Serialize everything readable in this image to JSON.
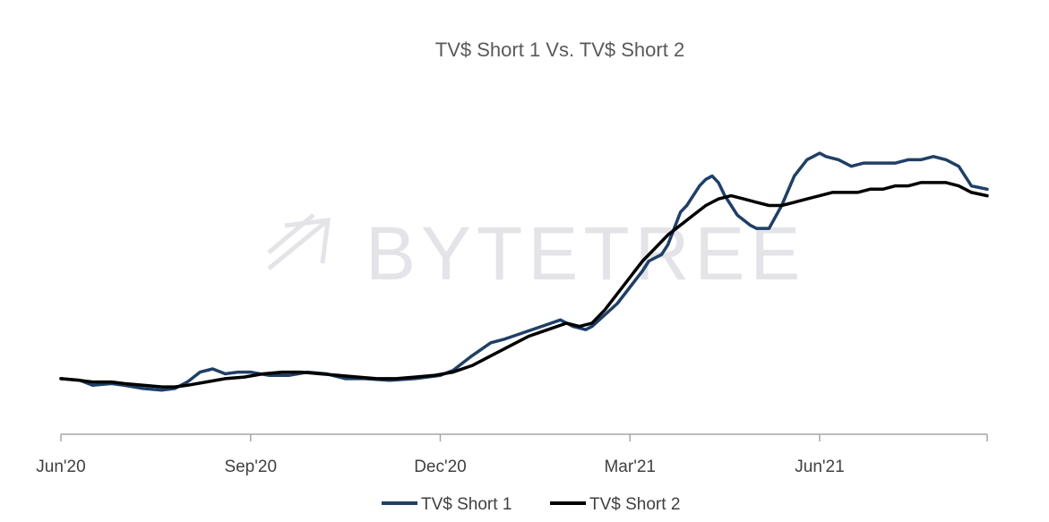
{
  "watermark": {
    "text": "BYTETREE"
  },
  "chart_data": {
    "type": "line",
    "title": "TV$ Short 1 Vs. TV$ Short 2",
    "xlabel": "",
    "ylabel": "",
    "x_ticks": [
      "Jun'20",
      "Sep'20",
      "Dec'20",
      "Mar'21",
      "Jun'21"
    ],
    "x_range": [
      0,
      14.65
    ],
    "ylim": [
      0,
      100
    ],
    "grid": false,
    "legend_position": "bottom",
    "series": [
      {
        "name": "TV$ Short 1",
        "color": "#1f3f66",
        "points": [
          [
            0,
            17
          ],
          [
            0.3,
            16.5
          ],
          [
            0.5,
            15
          ],
          [
            0.8,
            15.5
          ],
          [
            1.0,
            15
          ],
          [
            1.3,
            14
          ],
          [
            1.6,
            13.5
          ],
          [
            1.8,
            14
          ],
          [
            2.0,
            16
          ],
          [
            2.2,
            19
          ],
          [
            2.4,
            20
          ],
          [
            2.6,
            18.5
          ],
          [
            2.8,
            19
          ],
          [
            3.0,
            19
          ],
          [
            3.3,
            18
          ],
          [
            3.6,
            18
          ],
          [
            3.9,
            19
          ],
          [
            4.2,
            18.5
          ],
          [
            4.5,
            17
          ],
          [
            4.8,
            17
          ],
          [
            5.2,
            16.5
          ],
          [
            5.6,
            17
          ],
          [
            6.0,
            18
          ],
          [
            6.2,
            19.5
          ],
          [
            6.5,
            24
          ],
          [
            6.8,
            28
          ],
          [
            7.0,
            29
          ],
          [
            7.3,
            31
          ],
          [
            7.6,
            33
          ],
          [
            7.9,
            35
          ],
          [
            8.1,
            33
          ],
          [
            8.3,
            32
          ],
          [
            8.4,
            33
          ],
          [
            8.8,
            40
          ],
          [
            9.2,
            50
          ],
          [
            9.3,
            53
          ],
          [
            9.5,
            55
          ],
          [
            9.6,
            58
          ],
          [
            9.7,
            63
          ],
          [
            9.8,
            68
          ],
          [
            9.9,
            70
          ],
          [
            10.0,
            73
          ],
          [
            10.1,
            76
          ],
          [
            10.2,
            78
          ],
          [
            10.3,
            79
          ],
          [
            10.4,
            77
          ],
          [
            10.5,
            73
          ],
          [
            10.6,
            70
          ],
          [
            10.7,
            67
          ],
          [
            10.9,
            64
          ],
          [
            11.0,
            63
          ],
          [
            11.2,
            63
          ],
          [
            11.4,
            70
          ],
          [
            11.6,
            79
          ],
          [
            11.8,
            84
          ],
          [
            12.0,
            86
          ],
          [
            12.1,
            85
          ],
          [
            12.3,
            84
          ],
          [
            12.5,
            82
          ],
          [
            12.7,
            83
          ],
          [
            13.0,
            83
          ],
          [
            13.2,
            83
          ],
          [
            13.4,
            84
          ],
          [
            13.6,
            84
          ],
          [
            13.8,
            85
          ],
          [
            14.0,
            84
          ],
          [
            14.2,
            82
          ],
          [
            14.4,
            76
          ],
          [
            14.65,
            75
          ]
        ]
      },
      {
        "name": "TV$ Short 2",
        "color": "#000000",
        "points": [
          [
            0,
            17
          ],
          [
            0.3,
            16.5
          ],
          [
            0.5,
            16
          ],
          [
            0.8,
            16
          ],
          [
            1.0,
            15.5
          ],
          [
            1.3,
            15
          ],
          [
            1.6,
            14.5
          ],
          [
            1.8,
            14.5
          ],
          [
            2.0,
            15
          ],
          [
            2.3,
            16
          ],
          [
            2.6,
            17
          ],
          [
            2.9,
            17.5
          ],
          [
            3.2,
            18.5
          ],
          [
            3.5,
            19
          ],
          [
            3.8,
            19
          ],
          [
            4.1,
            18.5
          ],
          [
            4.4,
            18
          ],
          [
            4.7,
            17.5
          ],
          [
            5.0,
            17
          ],
          [
            5.3,
            17
          ],
          [
            5.6,
            17.5
          ],
          [
            5.9,
            18
          ],
          [
            6.2,
            19
          ],
          [
            6.5,
            21
          ],
          [
            6.8,
            24
          ],
          [
            7.1,
            27
          ],
          [
            7.4,
            30
          ],
          [
            7.7,
            32
          ],
          [
            8.0,
            34
          ],
          [
            8.2,
            33
          ],
          [
            8.4,
            34
          ],
          [
            8.6,
            38
          ],
          [
            8.8,
            43
          ],
          [
            9.0,
            48
          ],
          [
            9.2,
            53
          ],
          [
            9.4,
            57
          ],
          [
            9.6,
            61
          ],
          [
            9.8,
            64
          ],
          [
            10.0,
            67
          ],
          [
            10.2,
            70
          ],
          [
            10.4,
            72
          ],
          [
            10.6,
            73
          ],
          [
            10.8,
            72
          ],
          [
            11.0,
            71
          ],
          [
            11.2,
            70
          ],
          [
            11.4,
            70
          ],
          [
            11.6,
            71
          ],
          [
            11.8,
            72
          ],
          [
            12.0,
            73
          ],
          [
            12.2,
            74
          ],
          [
            12.4,
            74
          ],
          [
            12.6,
            74
          ],
          [
            12.8,
            75
          ],
          [
            13.0,
            75
          ],
          [
            13.2,
            76
          ],
          [
            13.4,
            76
          ],
          [
            13.6,
            77
          ],
          [
            13.8,
            77
          ],
          [
            14.0,
            77
          ],
          [
            14.2,
            76
          ],
          [
            14.4,
            74
          ],
          [
            14.65,
            73
          ]
        ]
      }
    ]
  }
}
